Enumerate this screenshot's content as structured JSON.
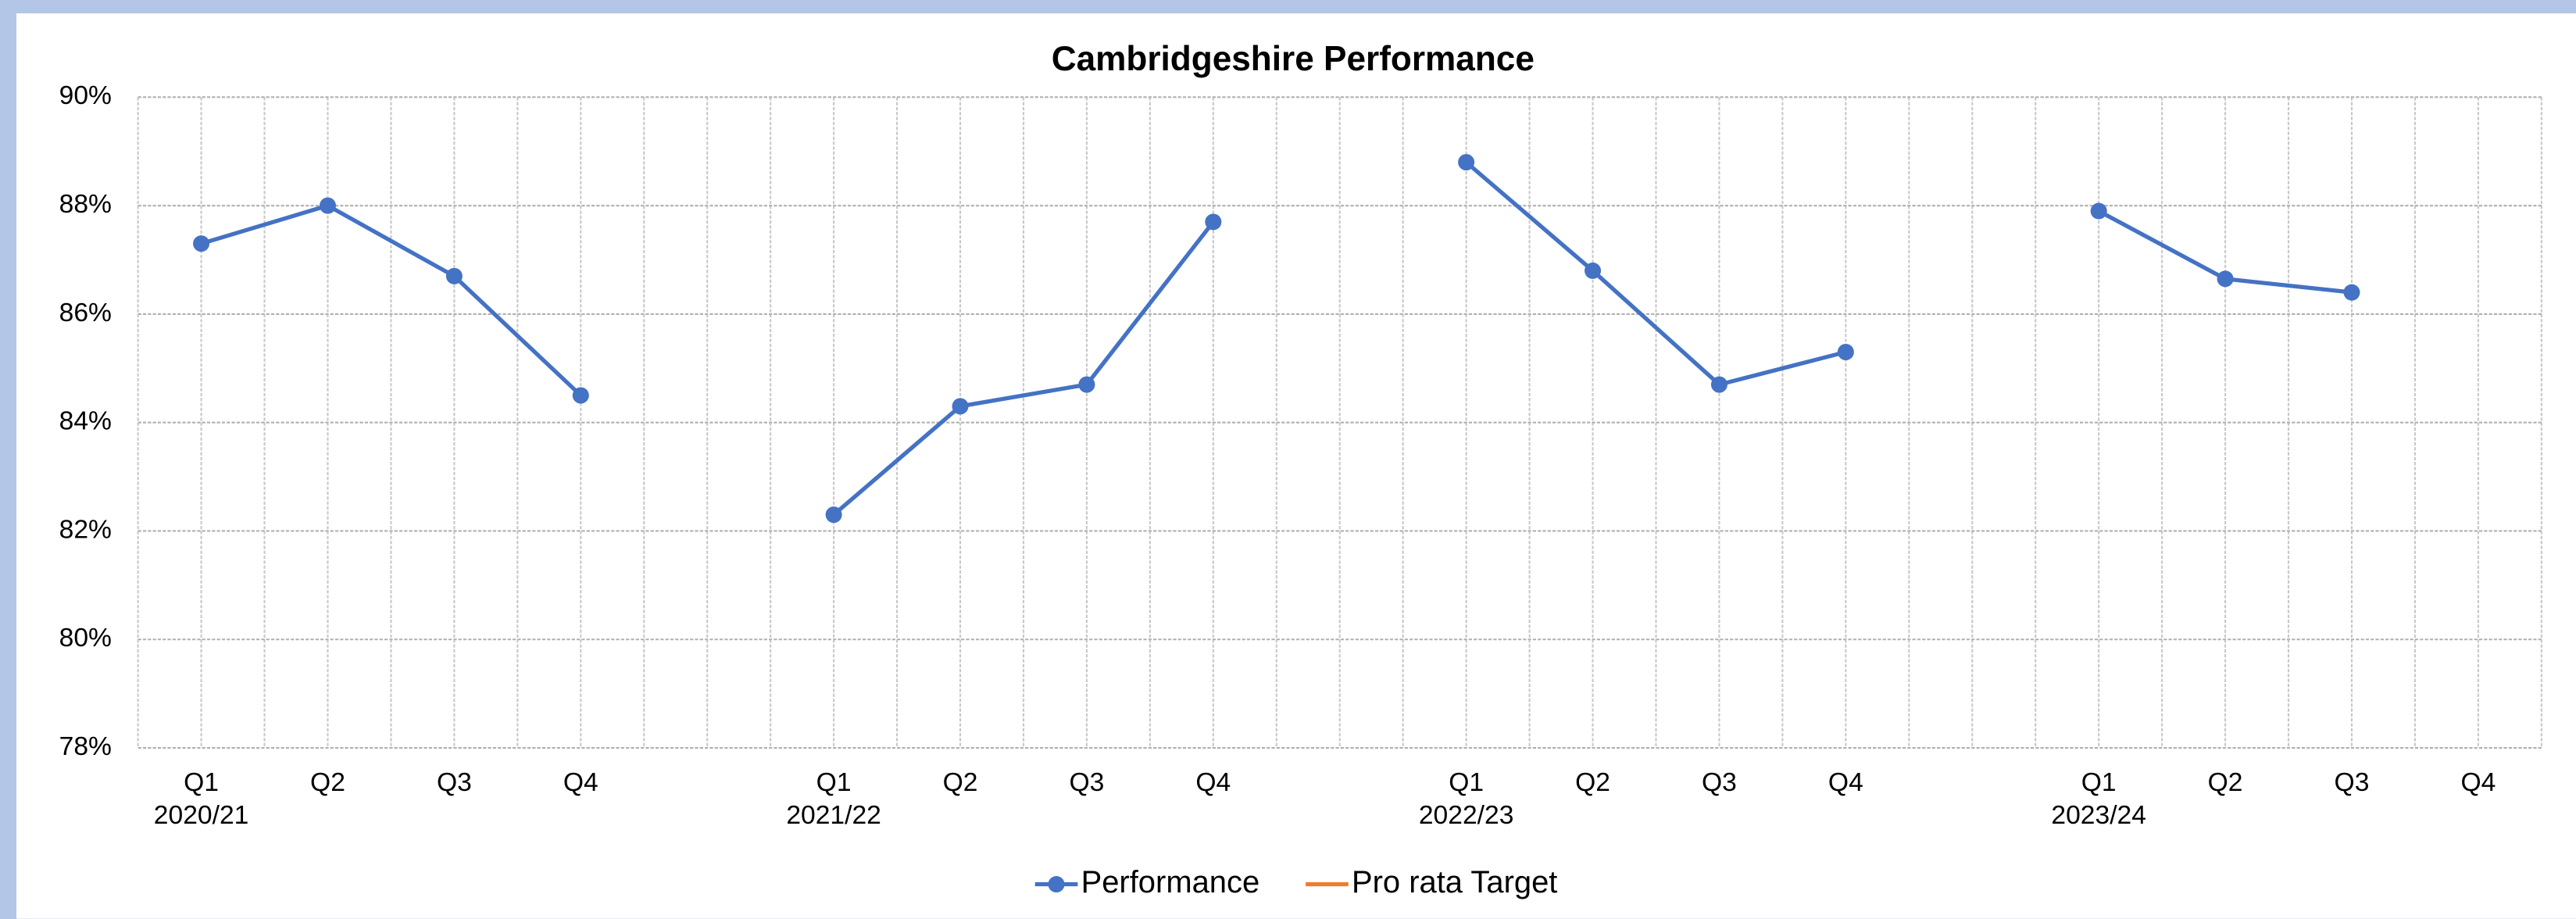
{
  "chart_data": {
    "type": "line",
    "title": "Cambridgeshire Performance",
    "categories": [
      "Q1",
      "Q2",
      "Q3",
      "Q4",
      null,
      "Q1",
      "Q2",
      "Q3",
      "Q4",
      null,
      "Q1",
      "Q2",
      "Q3",
      "Q4",
      null,
      "Q1",
      "Q2",
      "Q3",
      "Q4"
    ],
    "groups": [
      {
        "label": "2020/21",
        "start": 0
      },
      {
        "label": "2021/22",
        "start": 5
      },
      {
        "label": "2022/23",
        "start": 10
      },
      {
        "label": "2023/24",
        "start": 15
      }
    ],
    "series": [
      {
        "name": "Performance",
        "color": "#4472c4",
        "marker": true,
        "values": [
          87.3,
          88.0,
          86.7,
          84.5,
          null,
          82.3,
          84.3,
          84.7,
          87.7,
          null,
          88.8,
          86.8,
          84.7,
          85.3,
          null,
          87.9,
          86.65,
          86.4,
          null
        ]
      },
      {
        "name": "Pro rata Target",
        "color": "#ed7d31",
        "marker": false,
        "values": [
          null,
          null,
          null,
          null,
          null,
          null,
          null,
          null,
          null,
          null,
          null,
          null,
          null,
          null,
          null,
          null,
          null,
          null,
          null
        ]
      }
    ],
    "ylim": [
      78,
      90
    ],
    "yticks": [
      {
        "value": 78,
        "label": "78%"
      },
      {
        "value": 80,
        "label": "80%"
      },
      {
        "value": 82,
        "label": "82%"
      },
      {
        "value": 84,
        "label": "84%"
      },
      {
        "value": 86,
        "label": "86%"
      },
      {
        "value": 88,
        "label": "88%"
      },
      {
        "value": 90,
        "label": "90%"
      }
    ],
    "grid": true,
    "legend": "bottom"
  }
}
